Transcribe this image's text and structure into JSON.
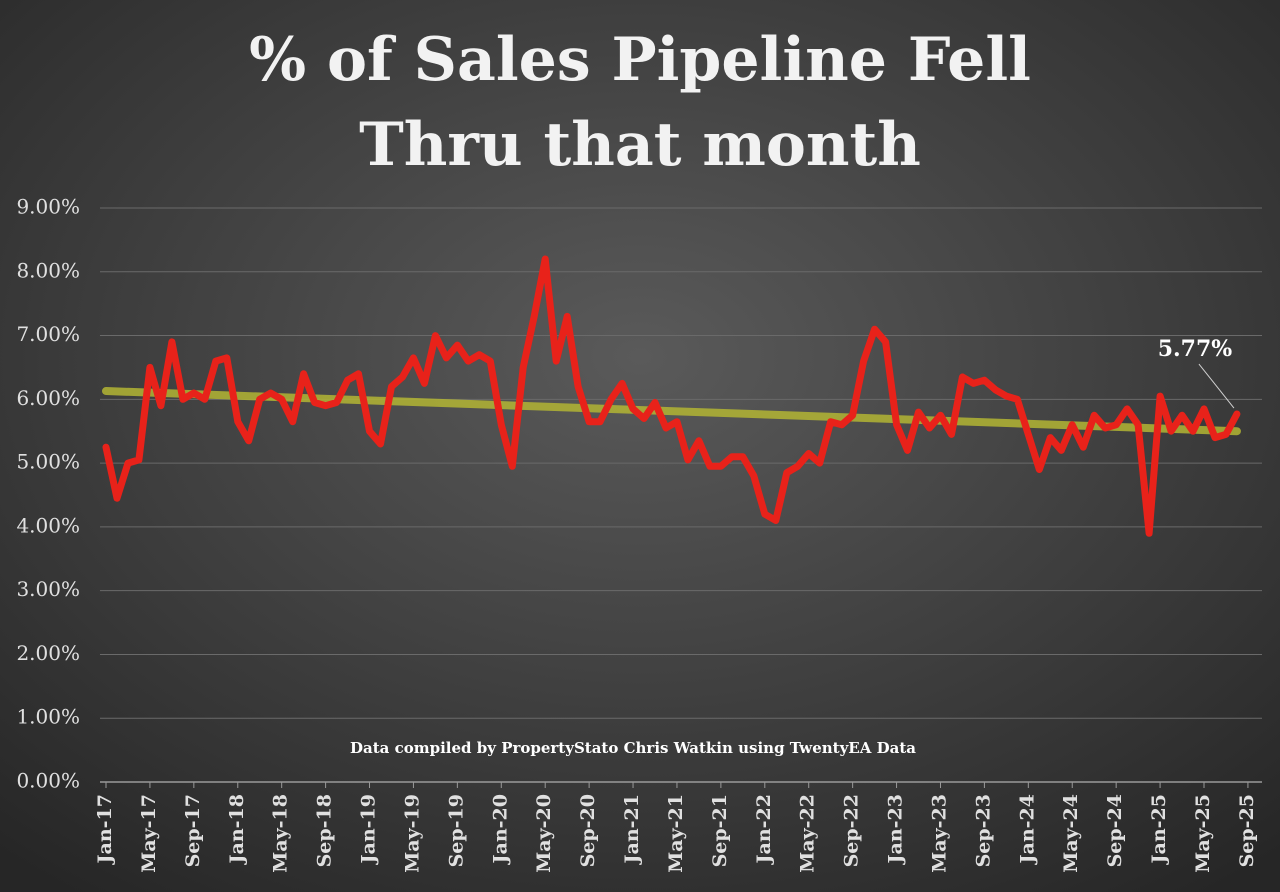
{
  "chart_data": {
    "type": "line",
    "title": [
      "% of Sales Pipeline Fell",
      "Thru that month"
    ],
    "note": "Data compiled by PropertyStato Chris Watkin using TwentyEA Data",
    "annotation": "5.77%",
    "categories": [
      "Jan-17",
      null,
      null,
      null,
      "May-17",
      null,
      null,
      null,
      "Sep-17",
      null,
      null,
      null,
      "Jan-18",
      null,
      null,
      null,
      "May-18",
      null,
      null,
      null,
      "Sep-18",
      null,
      null,
      null,
      "Jan-19",
      null,
      null,
      null,
      "May-19",
      null,
      null,
      null,
      "Sep-19",
      null,
      null,
      null,
      "Jan-20",
      null,
      null,
      null,
      "May-20",
      null,
      null,
      null,
      "Sep-20",
      null,
      null,
      null,
      "Jan-21",
      null,
      null,
      null,
      "May-21",
      null,
      null,
      null,
      "Sep-21",
      null,
      null,
      null,
      "Jan-22",
      null,
      null,
      null,
      "May-22",
      null,
      null,
      null,
      "Sep-22",
      null,
      null,
      null,
      "Jan-23",
      null,
      null,
      null,
      "May-23",
      null,
      null,
      null,
      "Sep-23",
      null,
      null,
      null,
      "Jan-24",
      null,
      null,
      null,
      "May-24",
      null,
      null,
      null,
      "Sep-24",
      null,
      null,
      null,
      "Jan-25",
      null,
      null,
      null,
      "May-25",
      null,
      null,
      null,
      "Sep-25"
    ],
    "series": [
      {
        "name": "% of Sales Pipeline Fell Thru",
        "color": "#e8221a",
        "values": [
          5.25,
          4.45,
          5.0,
          5.05,
          6.5,
          5.9,
          6.9,
          6.0,
          6.1,
          6.0,
          6.6,
          6.65,
          5.65,
          5.35,
          6.0,
          6.1,
          6.0,
          5.65,
          6.4,
          5.95,
          5.9,
          5.95,
          6.3,
          6.4,
          5.5,
          5.3,
          6.2,
          6.35,
          6.65,
          6.25,
          7.0,
          6.65,
          6.85,
          6.6,
          6.7,
          6.6,
          5.6,
          4.95,
          6.5,
          7.3,
          8.2,
          6.6,
          7.3,
          6.2,
          5.65,
          5.65,
          6.0,
          6.25,
          5.85,
          5.7,
          5.95,
          5.55,
          5.65,
          5.05,
          5.35,
          4.95,
          4.95,
          5.1,
          5.1,
          4.8,
          4.2,
          4.1,
          4.85,
          4.95,
          5.15,
          5.0,
          5.65,
          5.6,
          5.75,
          6.6,
          7.1,
          6.9,
          5.6,
          5.2,
          5.8,
          5.55,
          5.75,
          5.45,
          6.35,
          6.25,
          6.3,
          6.15,
          6.05,
          6.0,
          5.45,
          4.9,
          5.4,
          5.2,
          5.6,
          5.25,
          5.75,
          5.55,
          5.6,
          5.85,
          5.6,
          3.9,
          6.05,
          5.5,
          5.75,
          5.5,
          5.85,
          5.4,
          5.45,
          5.77,
          null
        ]
      }
    ],
    "trendline": {
      "color": "#b3b534",
      "values": [
        6.13,
        5.5
      ]
    },
    "ylim": [
      0,
      9
    ],
    "yticks": [
      {
        "value": 0,
        "label": "0.00%"
      },
      {
        "value": 1,
        "label": "1.00%"
      },
      {
        "value": 2,
        "label": "2.00%"
      },
      {
        "value": 3,
        "label": "3.00%"
      },
      {
        "value": 4,
        "label": "4.00%"
      },
      {
        "value": 5,
        "label": "5.00%"
      },
      {
        "value": 6,
        "label": "6.00%"
      },
      {
        "value": 7,
        "label": "7.00%"
      },
      {
        "value": 8,
        "label": "8.00%"
      },
      {
        "value": 9,
        "label": "9.00%"
      }
    ],
    "grid": true
  }
}
